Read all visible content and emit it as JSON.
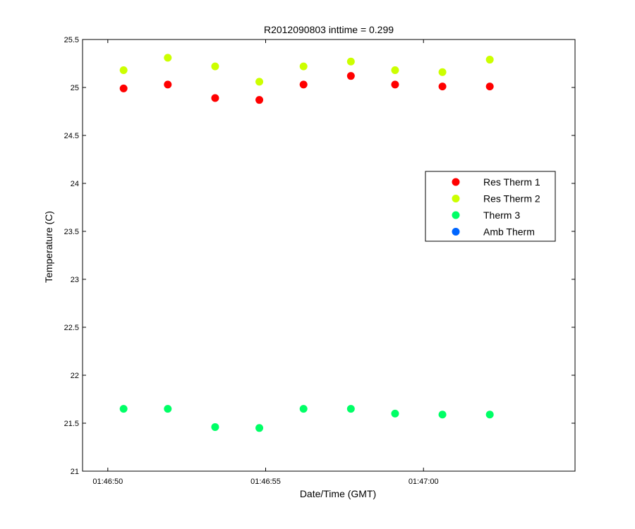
{
  "chart_data": {
    "type": "scatter",
    "title": "R2012090803 inttime = 0.299",
    "xlabel": "Date/Time (GMT)",
    "ylabel": "Temperature (C)",
    "xlim": [
      "01:46:49.2",
      "01:47:04.8"
    ],
    "ylim": [
      21,
      25.5
    ],
    "x_ticks": [
      "01:46:50",
      "01:46:55",
      "01:47:00"
    ],
    "y_ticks": [
      "21",
      "21.5",
      "22",
      "22.5",
      "23",
      "23.5",
      "24",
      "24.5",
      "25",
      "25.5"
    ],
    "grid": false,
    "legend_position": "right",
    "x": [
      "01:46:50.5",
      "01:46:51.9",
      "01:46:53.4",
      "01:46:54.8",
      "01:46:56.2",
      "01:46:57.7",
      "01:46:59.1",
      "01:47:00.6",
      "01:47:02.1"
    ],
    "series": [
      {
        "name": "Res Therm 1",
        "color": "#ff0000",
        "values": [
          24.99,
          25.03,
          24.89,
          24.87,
          25.03,
          25.12,
          25.03,
          25.01,
          25.01
        ]
      },
      {
        "name": "Res Therm 2",
        "color": "#ccff00",
        "values": [
          25.18,
          25.31,
          25.22,
          25.06,
          25.22,
          25.27,
          25.18,
          25.16,
          25.29
        ]
      },
      {
        "name": "Therm 3",
        "color": "#00ff66",
        "values": [
          21.65,
          21.65,
          21.46,
          21.45,
          21.65,
          21.65,
          21.6,
          21.59,
          21.59
        ]
      },
      {
        "name": "Amb Therm",
        "color": "#0066ff",
        "values": []
      }
    ]
  }
}
